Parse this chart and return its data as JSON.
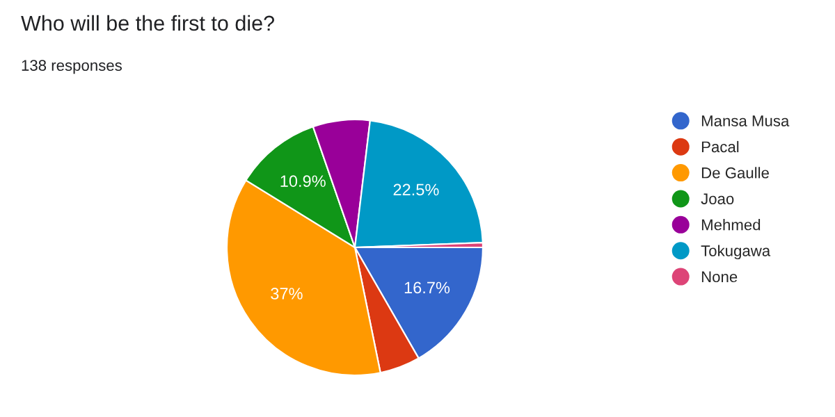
{
  "chart_data": {
    "type": "pie",
    "title": "Who will be the first to die?",
    "subtitle": "138 responses",
    "categories": [
      "Mansa Musa",
      "Pacal",
      "De Gaulle",
      "Joao",
      "Mehmed",
      "Tokugawa",
      "None"
    ],
    "values": [
      16.7,
      5.1,
      37,
      10.9,
      7.2,
      22.5,
      0.6
    ],
    "value_labels": [
      "16.7%",
      null,
      "37%",
      "10.9%",
      null,
      "22.5%",
      null
    ],
    "colors": [
      "#3366cc",
      "#dc3912",
      "#ff9900",
      "#109618",
      "#990099",
      "#0099c6",
      "#dd4477"
    ],
    "legend": "right"
  }
}
